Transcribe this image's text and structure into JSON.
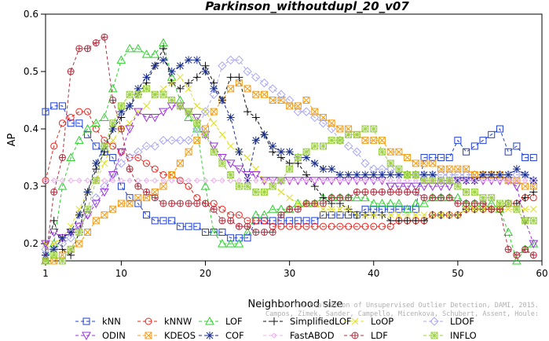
{
  "chart_data": {
    "type": "line",
    "title": "Parkinson_withoutdupl_20_v07",
    "xlabel": "Neighborhood size",
    "ylabel": "AP",
    "xlim": [
      1,
      60
    ],
    "ylim": [
      0.17,
      0.6
    ],
    "x_ticks": [
      "1",
      "10",
      "20",
      "30",
      "40",
      "50",
      "60"
    ],
    "y_ticks": [
      "0.2",
      "0.3",
      "0.4",
      "0.5",
      "0.6"
    ],
    "grid": false,
    "legend_position": "bottom",
    "x": [
      1,
      2,
      3,
      4,
      5,
      6,
      7,
      8,
      9,
      10,
      11,
      12,
      13,
      14,
      15,
      16,
      17,
      18,
      19,
      20,
      21,
      22,
      23,
      24,
      25,
      26,
      27,
      28,
      29,
      30,
      31,
      32,
      33,
      34,
      35,
      36,
      37,
      38,
      39,
      40,
      41,
      42,
      43,
      44,
      45,
      46,
      47,
      48,
      49,
      50,
      51,
      52,
      53,
      54,
      55,
      56,
      57,
      58,
      59
    ],
    "series": [
      {
        "name": "kNN",
        "color": "#1f3fd6",
        "marker": "square",
        "values": [
          0.43,
          0.44,
          0.44,
          0.41,
          0.41,
          0.39,
          0.37,
          0.36,
          0.35,
          0.3,
          0.28,
          0.27,
          0.25,
          0.24,
          0.24,
          0.24,
          0.23,
          0.23,
          0.23,
          0.22,
          0.22,
          0.22,
          0.21,
          0.21,
          0.21,
          0.24,
          0.24,
          0.24,
          0.24,
          0.24,
          0.24,
          0.24,
          0.24,
          0.25,
          0.25,
          0.25,
          0.25,
          0.25,
          0.26,
          0.26,
          0.26,
          0.26,
          0.26,
          0.26,
          0.26,
          0.35,
          0.35,
          0.35,
          0.35,
          0.38,
          0.36,
          0.37,
          0.38,
          0.39,
          0.4,
          0.36,
          0.37,
          0.35,
          0.35
        ]
      },
      {
        "name": "kNNW",
        "color": "#e8261e",
        "marker": "circle",
        "values": [
          0.31,
          0.37,
          0.41,
          0.42,
          0.43,
          0.43,
          0.4,
          0.38,
          0.37,
          0.36,
          0.35,
          0.35,
          0.34,
          0.33,
          0.32,
          0.32,
          0.31,
          0.3,
          0.28,
          0.27,
          0.27,
          0.26,
          0.25,
          0.25,
          0.24,
          0.24,
          0.24,
          0.23,
          0.23,
          0.23,
          0.23,
          0.23,
          0.23,
          0.23,
          0.23,
          0.23,
          0.23,
          0.23,
          0.23,
          0.23,
          0.23,
          0.23,
          0.24,
          0.24,
          0.24,
          0.24,
          0.25,
          0.25,
          0.25,
          0.25,
          0.26,
          0.26,
          0.26,
          0.26,
          0.26,
          0.27,
          0.27,
          0.28,
          0.28
        ]
      },
      {
        "name": "LOF",
        "color": "#2ed12e",
        "marker": "triangle",
        "values": [
          0.17,
          0.2,
          0.3,
          0.35,
          0.38,
          0.4,
          0.41,
          0.42,
          0.47,
          0.52,
          0.54,
          0.54,
          0.53,
          0.53,
          0.55,
          0.49,
          0.45,
          0.42,
          0.4,
          0.3,
          0.22,
          0.2,
          0.2,
          0.2,
          0.22,
          0.25,
          0.25,
          0.26,
          0.26,
          0.26,
          0.27,
          0.27,
          0.27,
          0.28,
          0.28,
          0.28,
          0.28,
          0.28,
          0.28,
          0.27,
          0.27,
          0.27,
          0.27,
          0.26,
          0.27,
          0.27,
          0.28,
          0.28,
          0.28,
          0.28,
          0.27,
          0.27,
          0.27,
          0.27,
          0.26,
          0.22,
          0.17,
          0.19,
          0.2
        ]
      },
      {
        "name": "SimplifiedLOF",
        "color": "#111111",
        "marker": "plus",
        "values": [
          0.18,
          0.24,
          0.19,
          0.18,
          0.22,
          0.29,
          0.33,
          0.36,
          0.4,
          0.42,
          0.44,
          0.46,
          0.48,
          0.51,
          0.54,
          0.48,
          0.47,
          0.48,
          0.49,
          0.51,
          0.48,
          0.45,
          0.49,
          0.49,
          0.43,
          0.42,
          0.39,
          0.36,
          0.35,
          0.34,
          0.34,
          0.32,
          0.3,
          0.28,
          0.27,
          0.27,
          0.26,
          0.25,
          0.25,
          0.25,
          0.25,
          0.24,
          0.24,
          0.24,
          0.24,
          0.24,
          0.25,
          0.25,
          0.25,
          0.25,
          0.26,
          0.26,
          0.26,
          0.26,
          0.26,
          0.27,
          0.27,
          0.28,
          0.29
        ]
      },
      {
        "name": "LoOP",
        "color": "#e0e020",
        "marker": "x",
        "values": [
          0.2,
          0.2,
          0.21,
          0.23,
          0.26,
          0.29,
          0.31,
          0.34,
          0.38,
          0.4,
          0.41,
          0.43,
          0.44,
          0.46,
          0.47,
          0.48,
          0.49,
          0.47,
          0.44,
          0.43,
          0.41,
          0.39,
          0.37,
          0.36,
          0.35,
          0.33,
          0.31,
          0.3,
          0.29,
          0.28,
          0.27,
          0.27,
          0.27,
          0.26,
          0.26,
          0.26,
          0.26,
          0.25,
          0.25,
          0.25,
          0.25,
          0.25,
          0.25,
          0.25,
          0.25,
          0.25,
          0.25,
          0.25,
          0.25,
          0.25,
          0.26,
          0.26,
          0.26,
          0.26,
          0.26,
          0.26,
          0.26,
          0.26,
          0.26
        ]
      },
      {
        "name": "LDOF",
        "color": "#a8a8f0",
        "marker": "diamond",
        "values": [
          0.19,
          0.19,
          0.2,
          0.21,
          0.23,
          0.25,
          0.28,
          0.3,
          0.32,
          0.34,
          0.35,
          0.36,
          0.37,
          0.37,
          0.38,
          0.38,
          0.38,
          0.38,
          0.4,
          0.43,
          0.46,
          0.51,
          0.52,
          0.52,
          0.5,
          0.49,
          0.48,
          0.47,
          0.46,
          0.45,
          0.43,
          0.43,
          0.42,
          0.41,
          0.4,
          0.38,
          0.37,
          0.36,
          0.34,
          0.33,
          0.33,
          0.33,
          0.32,
          0.32,
          0.32,
          0.32,
          0.32,
          0.32,
          0.32,
          0.32,
          0.32,
          0.32,
          0.32,
          0.32,
          0.32,
          0.32,
          0.32,
          0.32,
          0.31
        ]
      },
      {
        "name": "ODIN",
        "color": "#9b30e0",
        "marker": "triangle-down",
        "values": [
          0.2,
          0.22,
          0.21,
          0.22,
          0.23,
          0.25,
          0.27,
          0.29,
          0.32,
          0.36,
          0.4,
          0.43,
          0.42,
          0.42,
          0.43,
          0.44,
          0.44,
          0.43,
          0.42,
          0.39,
          0.37,
          0.35,
          0.34,
          0.33,
          0.32,
          0.32,
          0.31,
          0.31,
          0.31,
          0.31,
          0.31,
          0.31,
          0.31,
          0.31,
          0.31,
          0.31,
          0.31,
          0.31,
          0.31,
          0.31,
          0.31,
          0.3,
          0.3,
          0.3,
          0.3,
          0.3,
          0.3,
          0.3,
          0.3,
          0.31,
          0.31,
          0.31,
          0.31,
          0.31,
          0.31,
          0.31,
          0.3,
          0.24,
          0.2
        ]
      },
      {
        "name": "KDEOS",
        "color": "#f0a020",
        "marker": "boxx",
        "values": [
          0.17,
          0.17,
          0.18,
          0.19,
          0.2,
          0.22,
          0.24,
          0.25,
          0.26,
          0.27,
          0.27,
          0.28,
          0.28,
          0.29,
          0.3,
          0.32,
          0.34,
          0.36,
          0.38,
          0.4,
          0.43,
          0.45,
          0.47,
          0.48,
          0.47,
          0.46,
          0.46,
          0.45,
          0.45,
          0.44,
          0.44,
          0.45,
          0.43,
          0.42,
          0.41,
          0.4,
          0.4,
          0.39,
          0.38,
          0.38,
          0.38,
          0.36,
          0.36,
          0.35,
          0.34,
          0.34,
          0.34,
          0.33,
          0.33,
          0.33,
          0.33,
          0.32,
          0.32,
          0.32,
          0.32,
          0.31,
          0.31,
          0.3,
          0.3
        ]
      },
      {
        "name": "COF",
        "color": "#1a2f8c",
        "marker": "star",
        "values": [
          0.18,
          0.19,
          0.21,
          0.22,
          0.25,
          0.29,
          0.34,
          0.37,
          0.4,
          0.43,
          0.44,
          0.47,
          0.49,
          0.51,
          0.52,
          0.5,
          0.51,
          0.52,
          0.52,
          0.5,
          0.47,
          0.45,
          0.42,
          0.36,
          0.31,
          0.38,
          0.39,
          0.37,
          0.36,
          0.36,
          0.35,
          0.35,
          0.34,
          0.33,
          0.33,
          0.32,
          0.32,
          0.32,
          0.32,
          0.32,
          0.32,
          0.32,
          0.32,
          0.32,
          0.32,
          0.32,
          0.32,
          0.31,
          0.31,
          0.31,
          0.31,
          0.31,
          0.32,
          0.32,
          0.32,
          0.32,
          0.33,
          0.32,
          0.31
        ]
      },
      {
        "name": "FastABOD",
        "color": "#f0b0f0",
        "marker": "diamond-small",
        "values": [
          0.31,
          0.31,
          0.31,
          0.31,
          0.31,
          0.31,
          0.31,
          0.31,
          0.31,
          0.31,
          0.31,
          0.31,
          0.31,
          0.31,
          0.31,
          0.31,
          0.31,
          0.31,
          0.31,
          0.31,
          0.31,
          0.31,
          0.31,
          0.31,
          0.31,
          0.31,
          0.31,
          0.31,
          0.31,
          0.31,
          0.31,
          0.31,
          0.31,
          0.31,
          0.31,
          0.31,
          0.31,
          0.31,
          0.31,
          0.31,
          0.31,
          0.31,
          0.31,
          0.31,
          0.31,
          0.31,
          0.31,
          0.31,
          0.31,
          0.31,
          0.31,
          0.31,
          0.31,
          0.31,
          0.31,
          0.31,
          0.31,
          0.31,
          0.31
        ]
      },
      {
        "name": "LDF",
        "color": "#b03040",
        "marker": "circle-plus",
        "values": [
          0.17,
          0.29,
          0.35,
          0.5,
          0.54,
          0.54,
          0.55,
          0.56,
          0.45,
          0.4,
          0.33,
          0.3,
          0.29,
          0.28,
          0.27,
          0.27,
          0.27,
          0.27,
          0.27,
          0.27,
          0.26,
          0.24,
          0.24,
          0.23,
          0.23,
          0.22,
          0.22,
          0.22,
          0.25,
          0.26,
          0.26,
          0.27,
          0.27,
          0.27,
          0.28,
          0.28,
          0.28,
          0.29,
          0.29,
          0.29,
          0.29,
          0.29,
          0.29,
          0.29,
          0.29,
          0.28,
          0.28,
          0.28,
          0.28,
          0.27,
          0.27,
          0.27,
          0.27,
          0.26,
          0.26,
          0.19,
          0.18,
          0.19,
          0.18
        ]
      },
      {
        "name": "INFLO",
        "color": "#9bd040",
        "marker": "box-star",
        "values": [
          0.17,
          0.18,
          0.17,
          0.19,
          0.22,
          0.26,
          0.31,
          0.37,
          0.41,
          0.44,
          0.46,
          0.46,
          0.47,
          0.46,
          0.46,
          0.45,
          0.44,
          0.43,
          0.41,
          0.39,
          0.36,
          0.34,
          0.32,
          0.3,
          0.3,
          0.29,
          0.29,
          0.3,
          0.31,
          0.33,
          0.35,
          0.36,
          0.37,
          0.37,
          0.38,
          0.38,
          0.39,
          0.39,
          0.4,
          0.4,
          0.36,
          0.34,
          0.33,
          0.32,
          0.32,
          0.31,
          0.31,
          0.31,
          0.31,
          0.3,
          0.29,
          0.29,
          0.28,
          0.28,
          0.27,
          0.27,
          0.26,
          0.24,
          0.24
        ]
      }
    ]
  },
  "watermark": "Campos, Zimek, Sander, Campello, Micenkova, Schubert, Assent, Houle: On the Evaluation of Unsupervised Outlier Detection, DAMI, 2015."
}
